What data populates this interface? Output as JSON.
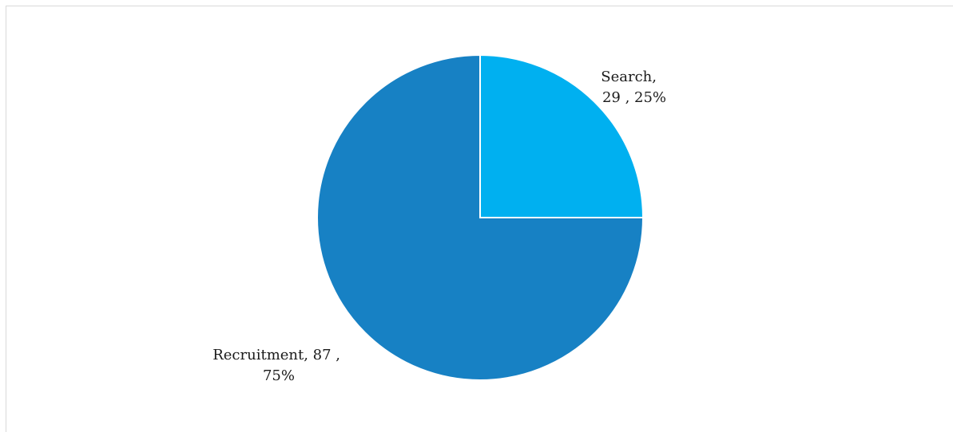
{
  "chart_data": {
    "type": "pie",
    "slices": [
      {
        "name": "Search",
        "value": 29,
        "percent": "25%",
        "color": "#00b0f0",
        "label_line1": "Search,",
        "label_line2": "29 , 25%"
      },
      {
        "name": "Recruitment",
        "value": 87,
        "percent": "75%",
        "color": "#1781c4",
        "label_line1": "Recruitment,  87 ,",
        "label_line2": "75%"
      }
    ]
  }
}
